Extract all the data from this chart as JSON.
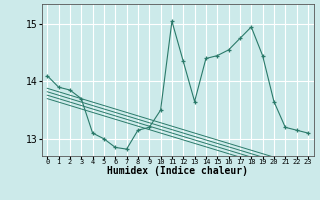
{
  "xlabel": "Humidex (Indice chaleur)",
  "bg_color": "#cceaea",
  "grid_color": "#ffffff",
  "line_color": "#2a7a6a",
  "xlim": [
    -0.5,
    23.5
  ],
  "ylim": [
    12.7,
    15.35
  ],
  "yticks": [
    13,
    14,
    15
  ],
  "series_main": [
    14.1,
    13.9,
    13.85,
    13.7,
    13.1,
    13.0,
    12.85,
    12.82,
    13.15,
    13.2,
    13.5,
    15.05,
    14.35,
    13.65,
    14.4,
    14.45,
    14.55,
    14.75,
    14.95,
    14.45,
    13.65,
    13.2,
    13.15,
    13.1
  ],
  "series_line1": [
    13.88,
    13.82,
    13.76,
    13.7,
    13.64,
    13.58,
    13.52,
    13.46,
    13.4,
    13.34,
    13.28,
    13.22,
    13.16,
    13.1,
    13.04,
    12.98,
    12.92,
    12.86,
    12.8,
    12.74,
    12.68,
    12.62,
    12.56,
    12.5
  ],
  "series_line2": [
    13.82,
    13.76,
    13.7,
    13.64,
    13.58,
    13.52,
    13.46,
    13.4,
    13.34,
    13.28,
    13.22,
    13.16,
    13.1,
    13.04,
    12.98,
    12.92,
    12.86,
    12.8,
    12.74,
    12.68,
    12.62,
    12.56,
    12.5,
    12.44
  ],
  "series_line3": [
    13.76,
    13.7,
    13.64,
    13.58,
    13.52,
    13.46,
    13.4,
    13.34,
    13.28,
    13.22,
    13.16,
    13.1,
    13.04,
    12.98,
    12.92,
    12.86,
    12.8,
    12.74,
    12.68,
    12.62,
    12.56,
    12.5,
    12.44,
    12.38
  ],
  "series_line4": [
    13.7,
    13.64,
    13.58,
    13.52,
    13.46,
    13.4,
    13.34,
    13.28,
    13.22,
    13.16,
    13.1,
    13.04,
    12.98,
    12.92,
    12.86,
    12.8,
    12.74,
    12.68,
    12.62,
    12.56,
    12.5,
    12.44,
    12.38,
    12.32
  ],
  "ytick_fontsize": 7,
  "xtick_fontsize": 5,
  "xlabel_fontsize": 7
}
